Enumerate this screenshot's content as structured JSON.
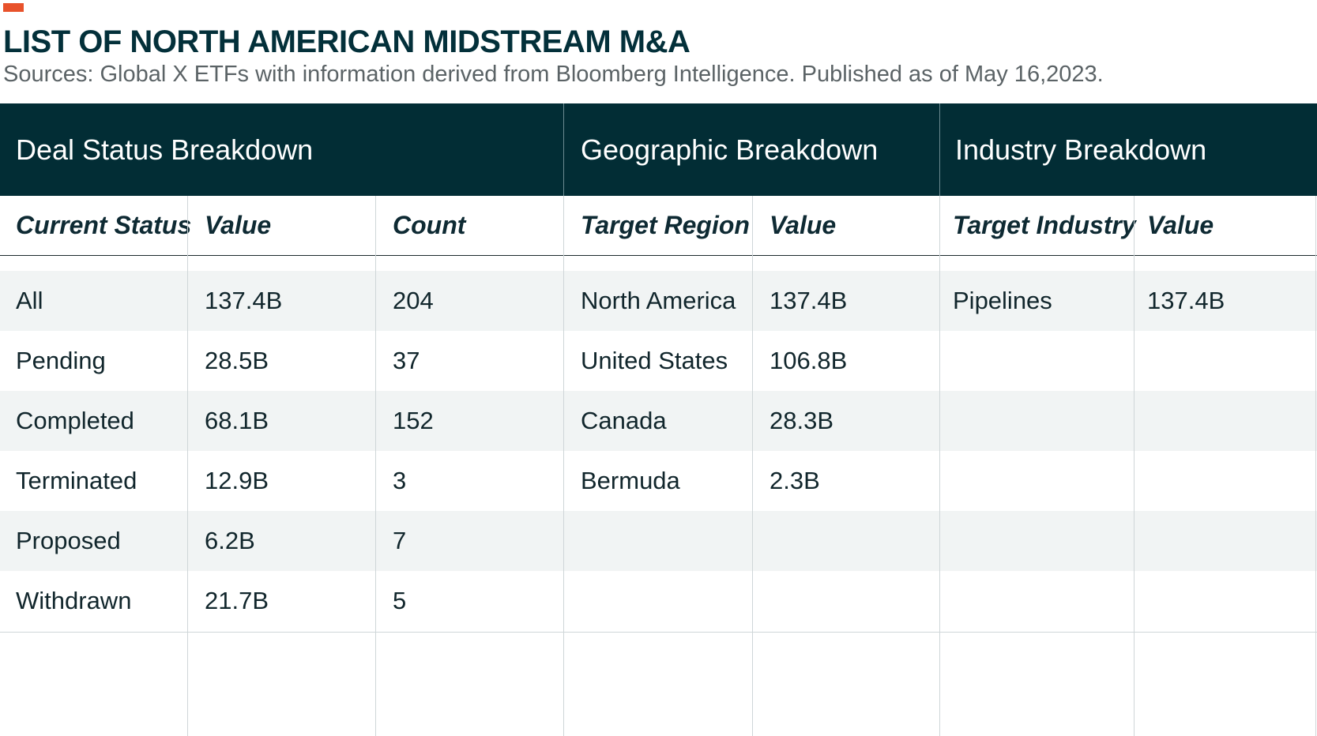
{
  "title": "LIST OF NORTH AMERICAN MIDSTREAM M&A",
  "subtitle": "Sources: Global X ETFs with information derived from Bloomberg Intelligence. Published as of May 16,2023.",
  "colors": {
    "accent": "#e8522b",
    "header_band": "#022d35",
    "alt_row": "#f1f4f4"
  },
  "sections": {
    "deal_status": {
      "title": "Deal Status Breakdown",
      "columns": [
        "Current Status",
        "Value",
        "Count"
      ],
      "rows": [
        [
          "All",
          "137.4B",
          "204"
        ],
        [
          "Pending",
          "28.5B",
          "37"
        ],
        [
          "Completed",
          "68.1B",
          "152"
        ],
        [
          "Terminated",
          "12.9B",
          "3"
        ],
        [
          "Proposed",
          "6.2B",
          "7"
        ],
        [
          "Withdrawn",
          "21.7B",
          "5"
        ]
      ]
    },
    "geographic": {
      "title": "Geographic Breakdown",
      "columns": [
        "Target Region",
        "Value"
      ],
      "rows": [
        [
          "North America",
          "137.4B"
        ],
        [
          "United States",
          "106.8B"
        ],
        [
          "Canada",
          "28.3B"
        ],
        [
          "Bermuda",
          "2.3B"
        ]
      ]
    },
    "industry": {
      "title": "Industry Breakdown",
      "columns": [
        "Target Industry",
        "Value"
      ],
      "rows": [
        [
          "Pipelines",
          "137.4B"
        ]
      ]
    }
  }
}
